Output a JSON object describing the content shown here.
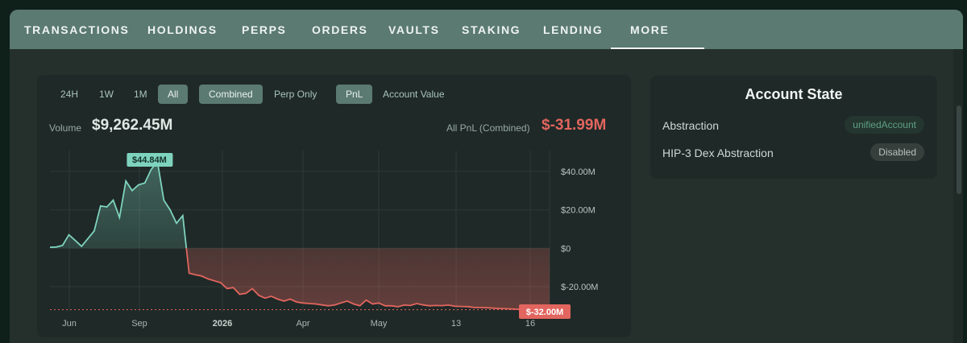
{
  "tabs": [
    {
      "label": "TRANSACTIONS",
      "x": 18
    },
    {
      "label": "HOLDINGS",
      "x": 171
    },
    {
      "label": "PERPS",
      "x": 288
    },
    {
      "label": "ORDERS",
      "x": 375
    },
    {
      "label": "VAULTS",
      "x": 470
    },
    {
      "label": "STAKING",
      "x": 561
    },
    {
      "label": "LENDING",
      "x": 662
    },
    {
      "label": "MORE",
      "x": 770
    }
  ],
  "active_tab": "MORE",
  "filters": {
    "timeframes": [
      "24H",
      "1W",
      "1M",
      "All"
    ],
    "active_timeframe": "All",
    "modes": [
      "Combined",
      "Perp Only"
    ],
    "active_mode": "Combined",
    "metrics": [
      "PnL",
      "Account Value"
    ],
    "active_metric": "PnL"
  },
  "summary": {
    "volume_label": "Volume",
    "volume_value": "$9,262.45M",
    "pnl_label": "All PnL (Combined)",
    "pnl_value": "$-31.99M"
  },
  "colors": {
    "positive": "#7ed3be",
    "negative": "#e2655f",
    "accent": "#5b7a71"
  },
  "chart_data": {
    "type": "area",
    "x_tick_labels": [
      "Jun",
      "Sep",
      "2026",
      "Apr",
      "May",
      "13",
      "16"
    ],
    "x_tick_bold": [
      false,
      false,
      true,
      false,
      false,
      false,
      false
    ],
    "y_tick_labels": [
      "$40.00M",
      "$20.00M",
      "$0",
      "$-20.00M"
    ],
    "y_ticks": [
      40,
      20,
      0,
      -20
    ],
    "ylim": [
      -33,
      50
    ],
    "baseline": 0,
    "max_label": "$44.84M",
    "last_label": "$-32.00M",
    "last_value": -32.0,
    "series": [
      {
        "values": [
          0.5,
          0.6,
          1.5,
          7,
          4,
          1,
          5,
          9,
          22,
          21.5,
          25,
          16,
          35,
          30,
          33,
          34,
          41,
          45,
          25,
          20,
          13,
          17,
          -13,
          -13.8,
          -14.5,
          -16,
          -17,
          -18,
          -21,
          -20.5,
          -24,
          -23.5,
          -21,
          -24.5,
          -26,
          -25,
          -26.5,
          -27.5,
          -26.5,
          -28,
          -28.5,
          -28.8,
          -29,
          -29.5,
          -30,
          -29.6,
          -28.5,
          -27.5,
          -29,
          -30,
          -27,
          -29,
          -28.5,
          -30,
          -30,
          -30.5,
          -29.6,
          -29.8,
          -28.8,
          -29.5,
          -30,
          -29.8,
          -29.9,
          -29.6,
          -30.2,
          -30.3,
          -30.4,
          -30.8,
          -30.9,
          -31,
          -31.2,
          -31.4,
          -31.5,
          -31.6,
          -31.8,
          -31.9,
          -32,
          -32,
          -32,
          -32
        ]
      }
    ]
  },
  "account_state": {
    "title": "Account State",
    "rows": [
      {
        "label": "Abstraction",
        "value": "unifiedAccount",
        "style": "green"
      },
      {
        "label": "HIP-3 Dex Abstraction",
        "value": "Disabled",
        "style": "gray"
      }
    ]
  }
}
